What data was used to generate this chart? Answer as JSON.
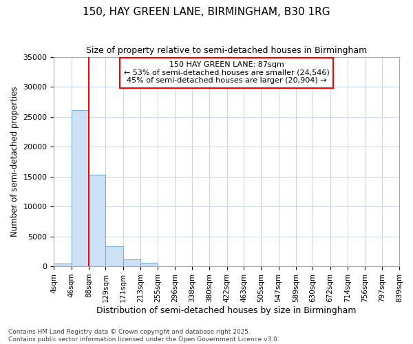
{
  "title": "150, HAY GREEN LANE, BIRMINGHAM, B30 1RG",
  "subtitle": "Size of property relative to semi-detached houses in Birmingham",
  "xlabel": "Distribution of semi-detached houses by size in Birmingham",
  "ylabel": "Number of semi-detached properties",
  "annotation_title": "150 HAY GREEN LANE: 87sqm",
  "annotation_line1": "← 53% of semi-detached houses are smaller (24,546)",
  "annotation_line2": "45% of semi-detached houses are larger (20,904) →",
  "footer1": "Contains HM Land Registry data © Crown copyright and database right 2025.",
  "footer2": "Contains public sector information licensed under the Open Government Licence v3.0.",
  "property_size_sqm": 87,
  "bin_edges": [
    4,
    46,
    88,
    129,
    171,
    213,
    255,
    296,
    338,
    380,
    422,
    463,
    505,
    547,
    589,
    630,
    672,
    714,
    756,
    797,
    839
  ],
  "bin_labels": [
    "4sqm",
    "46sqm",
    "88sqm",
    "129sqm",
    "171sqm",
    "213sqm",
    "255sqm",
    "296sqm",
    "338sqm",
    "380sqm",
    "422sqm",
    "463sqm",
    "505sqm",
    "547sqm",
    "589sqm",
    "630sqm",
    "672sqm",
    "714sqm",
    "756sqm",
    "797sqm",
    "839sqm"
  ],
  "bar_heights": [
    500,
    26100,
    15300,
    3300,
    1150,
    600,
    0,
    0,
    0,
    0,
    0,
    0,
    0,
    0,
    0,
    0,
    0,
    0,
    0,
    0
  ],
  "bar_color": "#cce0f5",
  "bar_edge_color": "#7ab0d8",
  "vline_color": "red",
  "vline_x": 88,
  "ylim": [
    0,
    35000
  ],
  "yticks": [
    0,
    5000,
    10000,
    15000,
    20000,
    25000,
    30000,
    35000
  ],
  "bg_color": "#ffffff",
  "plot_bg_color": "#ffffff",
  "grid_color": "#c8d8ee"
}
